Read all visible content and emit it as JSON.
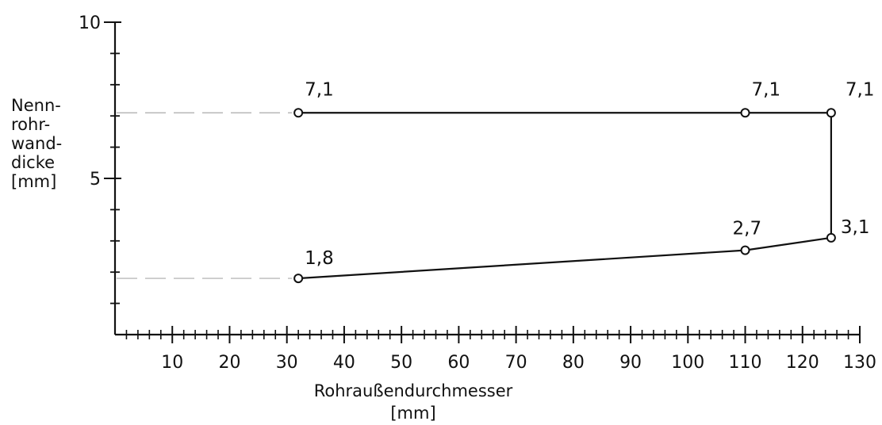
{
  "chart_data": {
    "type": "line",
    "title": "",
    "ylabel_lines": [
      "Nenn-",
      "rohr-",
      "wand-",
      "dicke",
      "[mm]"
    ],
    "xlabel_lines": [
      "Rohraußendurchmesser",
      "[mm]"
    ],
    "xlim": [
      0,
      130
    ],
    "ylim": [
      0,
      10
    ],
    "x_ticks": [
      10,
      20,
      30,
      40,
      50,
      60,
      70,
      80,
      90,
      100,
      110,
      120,
      130
    ],
    "x_tick_labels": [
      "10",
      "20",
      "30",
      "40",
      "50",
      "60",
      "70",
      "80",
      "90",
      "100",
      "110",
      "120",
      "130"
    ],
    "x_minor_step": 2,
    "y_ticks": [
      5,
      10
    ],
    "y_tick_labels": [
      "5",
      "10"
    ],
    "y_minor_step": 1,
    "grid": false,
    "series": [
      {
        "points": [
          {
            "x": 32,
            "y": 7.1,
            "label": "7,1"
          },
          {
            "x": 110,
            "y": 7.1,
            "label": "7,1"
          },
          {
            "x": 125,
            "y": 7.1,
            "label": "7,1"
          },
          {
            "x": 125,
            "y": 3.1,
            "label": "3,1"
          },
          {
            "x": 110,
            "y": 2.7,
            "label": "2,7"
          },
          {
            "x": 32,
            "y": 1.8,
            "label": "1,8"
          }
        ]
      }
    ],
    "reference_lines_to_y_axis": [
      7.1,
      1.8
    ],
    "colors": {
      "line": "#111111",
      "reference": "#aaaaaa"
    }
  }
}
